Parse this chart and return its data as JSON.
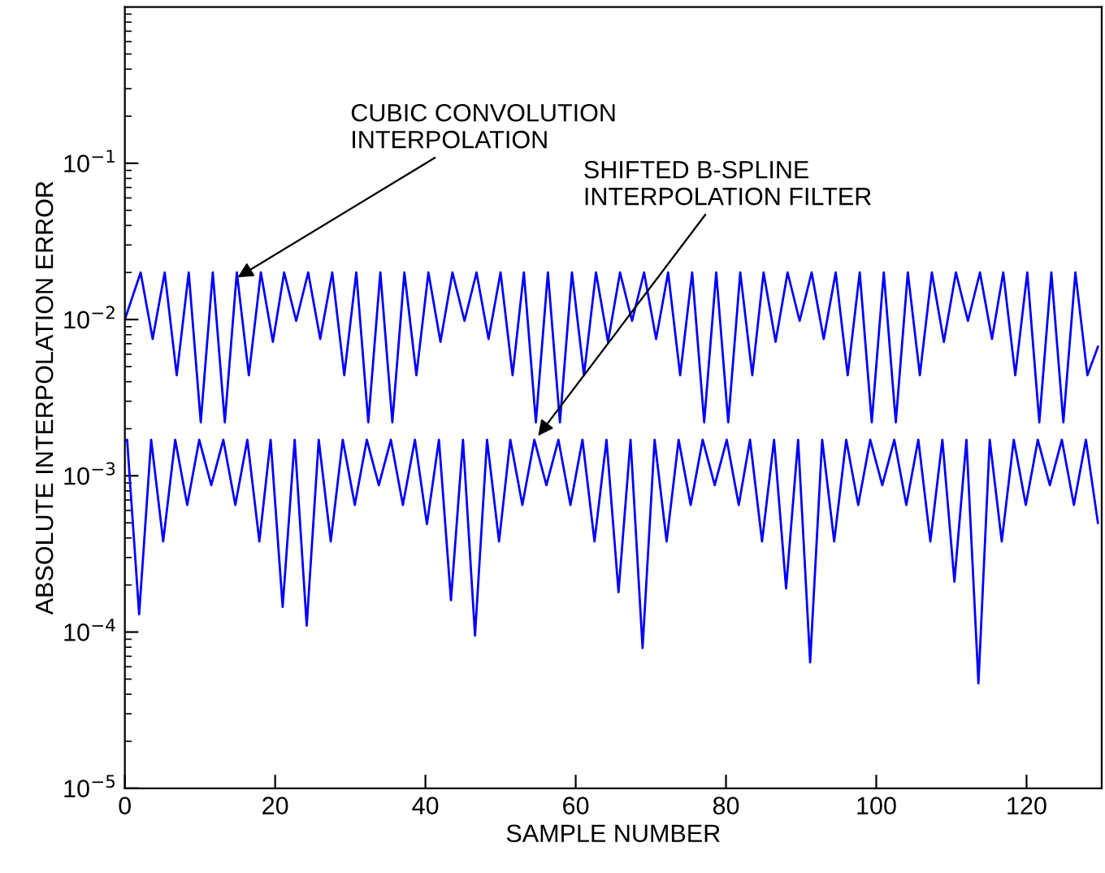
{
  "chart_data": {
    "type": "line",
    "xlabel": "SAMPLE NUMBER",
    "ylabel": "ABSOLUTE INTERPOLATION ERROR",
    "log": "y",
    "grid": false,
    "legend": false,
    "marker": "none",
    "line_style": "solid",
    "xlim": [
      0,
      130
    ],
    "xticks": [
      0,
      20,
      40,
      60,
      80,
      100,
      120
    ],
    "ylim": [
      1e-05,
      1
    ],
    "yticks": [
      {
        "value": 1e-05,
        "label": "10$^{−5}$"
      },
      {
        "value": 0.0001,
        "label": "10$^{−4}$"
      },
      {
        "value": 0.001,
        "label": "10$^{−3}$"
      },
      {
        "value": 0.01,
        "label": "10$^{−2}$"
      },
      {
        "value": 0.1,
        "label": "10$^{−1}$"
      }
    ],
    "annotations": [
      {
        "text": "CUBIC CONVOLUTION\nINTERPOLATION",
        "x": 15,
        "y": 0.0186
      },
      {
        "text": "SHIFTED B-SPLINE\nINTERPOLATION FILTER",
        "x": 55,
        "y": 0.0018
      }
    ],
    "series": [
      {
        "color": "#0000ff",
        "x": [
          0,
          2.1,
          3.7,
          5.3,
          6.9,
          8.5,
          10.1,
          11.7,
          13.3,
          14.9,
          16.5,
          18.1,
          19.7,
          21.2,
          22.8,
          24.4,
          26.0,
          27.6,
          29.2,
          30.8,
          32.4,
          34.0,
          35.6,
          37.2,
          38.8,
          40.4,
          42.0,
          43.6,
          45.2,
          46.8,
          48.4,
          50.0,
          51.6,
          53.1,
          54.7,
          56.3,
          57.9,
          59.5,
          61.1,
          62.7,
          64.3,
          65.9,
          67.5,
          69.1,
          70.7,
          72.3,
          73.9,
          75.5,
          77.1,
          78.7,
          80.3,
          81.9,
          83.5,
          85.0,
          86.6,
          88.2,
          89.8,
          91.4,
          93.0,
          94.6,
          96.2,
          97.8,
          99.4,
          101.0,
          102.6,
          104.2,
          105.8,
          107.4,
          109.0,
          110.6,
          112.2,
          113.8,
          115.4,
          116.9,
          118.5,
          120.1,
          121.7,
          123.3,
          124.9,
          126.5,
          128.1,
          129.5
        ],
        "values": [
          0.01,
          0.02,
          0.0075,
          0.02,
          0.0044,
          0.02,
          0.0022,
          0.02,
          0.0022,
          0.02,
          0.0044,
          0.02,
          0.0072,
          0.02,
          0.0098,
          0.02,
          0.0075,
          0.02,
          0.0044,
          0.02,
          0.0022,
          0.02,
          0.0022,
          0.02,
          0.0044,
          0.02,
          0.0072,
          0.02,
          0.0098,
          0.02,
          0.0075,
          0.02,
          0.0044,
          0.02,
          0.0022,
          0.02,
          0.0022,
          0.02,
          0.0044,
          0.02,
          0.0072,
          0.02,
          0.0098,
          0.02,
          0.0075,
          0.02,
          0.0044,
          0.02,
          0.0022,
          0.02,
          0.0022,
          0.02,
          0.0044,
          0.02,
          0.0072,
          0.02,
          0.0098,
          0.02,
          0.0075,
          0.02,
          0.0044,
          0.02,
          0.0022,
          0.02,
          0.0022,
          0.02,
          0.0044,
          0.02,
          0.0072,
          0.02,
          0.0098,
          0.02,
          0.0075,
          0.02,
          0.0044,
          0.02,
          0.0022,
          0.02,
          0.0022,
          0.02,
          0.0044,
          0.0067
        ]
      },
      {
        "color": "#0000ff",
        "x": [
          0,
          0.3,
          1.9,
          3.5,
          5.1,
          6.7,
          8.3,
          9.9,
          11.5,
          13.1,
          14.7,
          16.3,
          17.9,
          19.4,
          21.0,
          22.6,
          24.2,
          25.8,
          27.4,
          29.0,
          30.6,
          32.2,
          33.8,
          35.4,
          37.0,
          38.6,
          40.2,
          41.8,
          43.4,
          45.0,
          46.6,
          48.2,
          49.8,
          51.3,
          52.9,
          54.5,
          56.1,
          57.7,
          59.3,
          60.9,
          62.5,
          64.1,
          65.7,
          67.3,
          68.9,
          70.5,
          72.1,
          73.7,
          75.3,
          76.9,
          78.5,
          80.1,
          81.7,
          83.2,
          84.8,
          86.4,
          88.0,
          89.6,
          91.2,
          92.8,
          94.4,
          96.0,
          97.6,
          99.2,
          100.8,
          102.4,
          104.0,
          105.6,
          107.2,
          108.8,
          110.4,
          112.0,
          113.6,
          115.1,
          116.7,
          118.3,
          119.9,
          121.5,
          123.1,
          124.7,
          126.3,
          127.9,
          129.5
        ],
        "values": [
          0.0017,
          0.0017,
          0.00013,
          0.0017,
          0.00038,
          0.0017,
          0.00065,
          0.0017,
          0.00087,
          0.0017,
          0.00065,
          0.0017,
          0.00038,
          0.0017,
          0.000145,
          0.0017,
          0.00011,
          0.0017,
          0.00038,
          0.0017,
          0.00065,
          0.0017,
          0.00087,
          0.0017,
          0.00065,
          0.0017,
          0.00049,
          0.0017,
          0.00016,
          0.0017,
          9.5e-05,
          0.0017,
          0.00038,
          0.0017,
          0.00065,
          0.0017,
          0.00087,
          0.0017,
          0.00065,
          0.0017,
          0.00038,
          0.0017,
          0.00018,
          0.0017,
          7.9e-05,
          0.0017,
          0.00038,
          0.0017,
          0.00065,
          0.0017,
          0.00087,
          0.0017,
          0.00065,
          0.0017,
          0.00038,
          0.0017,
          0.00019,
          0.0017,
          6.4e-05,
          0.0017,
          0.00038,
          0.0017,
          0.00065,
          0.0017,
          0.00087,
          0.0017,
          0.00065,
          0.0017,
          0.00038,
          0.0017,
          0.00021,
          0.0017,
          4.7e-05,
          0.0017,
          0.00038,
          0.0017,
          0.00065,
          0.0017,
          0.00087,
          0.0017,
          0.00065,
          0.0017,
          0.0005
        ]
      }
    ]
  }
}
